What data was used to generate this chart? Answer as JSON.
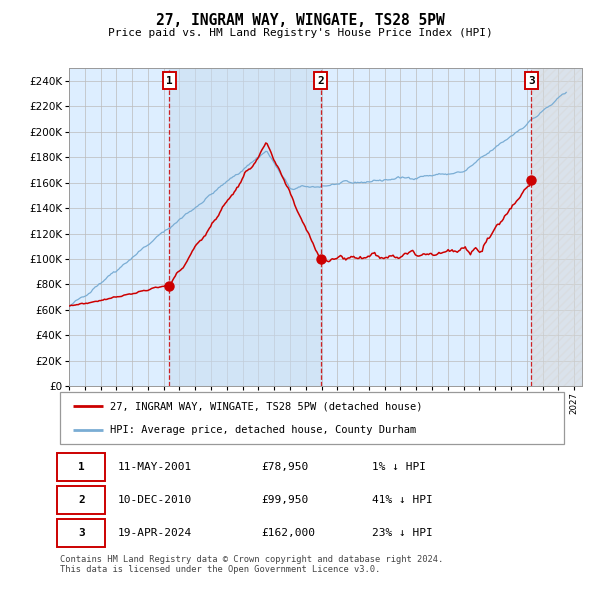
{
  "title": "27, INGRAM WAY, WINGATE, TS28 5PW",
  "subtitle": "Price paid vs. HM Land Registry's House Price Index (HPI)",
  "footer": "Contains HM Land Registry data © Crown copyright and database right 2024.\nThis data is licensed under the Open Government Licence v3.0.",
  "legend_line1": "27, INGRAM WAY, WINGATE, TS28 5PW (detached house)",
  "legend_line2": "HPI: Average price, detached house, County Durham",
  "hpi_color": "#7aadd4",
  "price_color": "#cc0000",
  "dot_color": "#cc0000",
  "bg_color": "#ddeeff",
  "grid_color": "#bbbbbb",
  "sale_dates": [
    2001.36,
    2010.94,
    2024.3
  ],
  "transactions": [
    {
      "date": 2001.36,
      "price": 78950,
      "label": "1"
    },
    {
      "date": 2010.94,
      "price": 99950,
      "label": "2"
    },
    {
      "date": 2024.3,
      "price": 162000,
      "label": "3"
    }
  ],
  "ylim": [
    0,
    250000
  ],
  "xlim": [
    1995.0,
    2027.5
  ],
  "yticks": [
    0,
    20000,
    40000,
    60000,
    80000,
    100000,
    120000,
    140000,
    160000,
    180000,
    200000,
    220000,
    240000
  ],
  "rows": [
    [
      "1",
      "11-MAY-2001",
      "£78,950",
      "1% ↓ HPI"
    ],
    [
      "2",
      "10-DEC-2010",
      "£99,950",
      "41% ↓ HPI"
    ],
    [
      "3",
      "19-APR-2024",
      "£162,000",
      "23% ↓ HPI"
    ]
  ]
}
